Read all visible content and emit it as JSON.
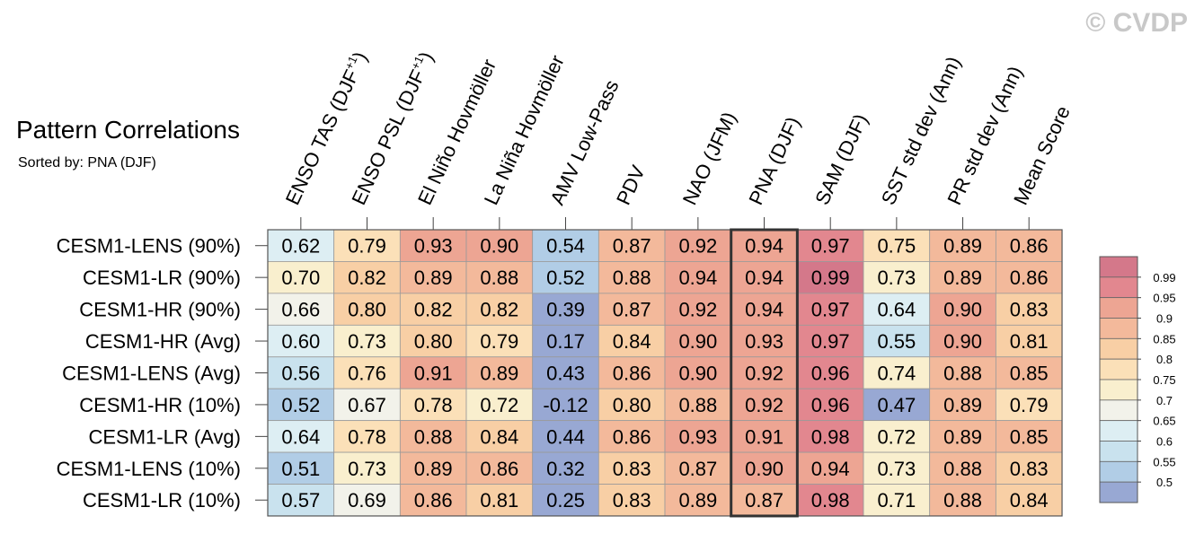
{
  "watermark": "© CVDP",
  "chart_data": {
    "type": "heatmap",
    "title": "Pattern Correlations",
    "subtitle": "Sorted by: PNA (DJF)",
    "columns": [
      {
        "label": "ENSO TAS (DJF",
        "superscript": "+1",
        "suffix": ")"
      },
      {
        "label": "ENSO PSL (DJF",
        "superscript": "+1",
        "suffix": ")"
      },
      {
        "label": "El Niño Hovmöller"
      },
      {
        "label": "La Niña Hovmöller"
      },
      {
        "label": "AMV Low-Pass"
      },
      {
        "label": "PDV"
      },
      {
        "label": "NAO (JFM)"
      },
      {
        "label": "PNA (DJF)"
      },
      {
        "label": "SAM (DJF)"
      },
      {
        "label": "SST std dev (Ann)"
      },
      {
        "label": "PR std dev (Ann)"
      },
      {
        "label": "Mean Score"
      }
    ],
    "highlighted_column": "PNA (DJF)",
    "rows": [
      {
        "label": "CESM1-LENS (90%)",
        "values": [
          0.62,
          0.79,
          0.93,
          0.9,
          0.54,
          0.87,
          0.92,
          0.94,
          0.97,
          0.75,
          0.89,
          0.86
        ]
      },
      {
        "label": "CESM1-LR (90%)",
        "values": [
          0.7,
          0.82,
          0.89,
          0.88,
          0.52,
          0.88,
          0.94,
          0.94,
          0.99,
          0.73,
          0.89,
          0.86
        ]
      },
      {
        "label": "CESM1-HR (90%)",
        "values": [
          0.66,
          0.8,
          0.82,
          0.82,
          0.39,
          0.87,
          0.92,
          0.94,
          0.97,
          0.64,
          0.9,
          0.83
        ]
      },
      {
        "label": "CESM1-HR (Avg)",
        "values": [
          0.6,
          0.73,
          0.8,
          0.79,
          0.17,
          0.84,
          0.9,
          0.93,
          0.97,
          0.55,
          0.9,
          0.81
        ]
      },
      {
        "label": "CESM1-LENS (Avg)",
        "values": [
          0.56,
          0.76,
          0.91,
          0.89,
          0.43,
          0.86,
          0.9,
          0.92,
          0.96,
          0.74,
          0.88,
          0.85
        ]
      },
      {
        "label": "CESM1-HR (10%)",
        "values": [
          0.52,
          0.67,
          0.78,
          0.72,
          -0.12,
          0.8,
          0.88,
          0.92,
          0.96,
          0.47,
          0.89,
          0.79
        ]
      },
      {
        "label": "CESM1-LR (Avg)",
        "values": [
          0.64,
          0.78,
          0.88,
          0.84,
          0.44,
          0.86,
          0.93,
          0.91,
          0.98,
          0.72,
          0.89,
          0.85
        ]
      },
      {
        "label": "CESM1-LENS (10%)",
        "values": [
          0.51,
          0.73,
          0.89,
          0.86,
          0.32,
          0.83,
          0.87,
          0.9,
          0.94,
          0.73,
          0.88,
          0.83
        ]
      },
      {
        "label": "CESM1-LR (10%)",
        "values": [
          0.57,
          0.69,
          0.86,
          0.81,
          0.25,
          0.83,
          0.89,
          0.87,
          0.98,
          0.71,
          0.88,
          0.84
        ]
      }
    ],
    "colorbar": {
      "ticks": [
        "0.99",
        "0.95",
        "0.9",
        "0.85",
        "0.8",
        "0.75",
        "0.7",
        "0.65",
        "0.6",
        "0.55",
        "0.5"
      ],
      "thresholds": [
        0.99,
        0.95,
        0.9,
        0.85,
        0.8,
        0.75,
        0.7,
        0.65,
        0.6,
        0.55,
        0.5
      ],
      "colors": [
        "#d4788a",
        "#e2878f",
        "#eda593",
        "#f3b99b",
        "#f8cfa5",
        "#fbe0b8",
        "#f9efce",
        "#f2f2ea",
        "#ddeef3",
        "#c9e2ee",
        "#b1cde6",
        "#98a8d3"
      ]
    }
  }
}
